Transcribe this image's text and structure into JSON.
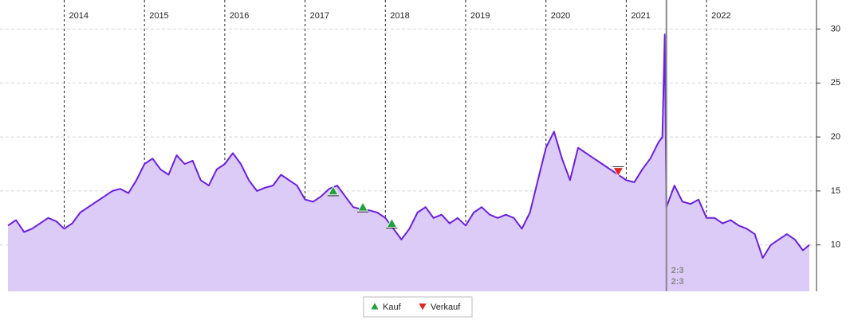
{
  "chart_data": {
    "type": "area",
    "xlim": [
      2013.28,
      2023.28
    ],
    "xticks": [
      2014,
      2015,
      2016,
      2017,
      2018,
      2019,
      2020,
      2021,
      2022
    ],
    "ylim": [
      5.7,
      32.1
    ],
    "yticks": [
      10,
      15,
      20,
      25,
      30
    ],
    "grid": true,
    "price": {
      "color": "#6a1fe0",
      "fill": "#dccbf7",
      "x": [
        2013.3,
        2013.4,
        2013.5,
        2013.6,
        2013.7,
        2013.8,
        2013.9,
        2014.0,
        2014.1,
        2014.2,
        2014.3,
        2014.4,
        2014.5,
        2014.6,
        2014.7,
        2014.8,
        2014.9,
        2015.0,
        2015.1,
        2015.2,
        2015.3,
        2015.4,
        2015.5,
        2015.6,
        2015.7,
        2015.8,
        2015.9,
        2016.0,
        2016.1,
        2016.2,
        2016.3,
        2016.4,
        2016.5,
        2016.6,
        2016.7,
        2016.8,
        2016.9,
        2017.0,
        2017.1,
        2017.2,
        2017.3,
        2017.4,
        2017.5,
        2017.6,
        2017.7,
        2017.8,
        2017.9,
        2018.0,
        2018.1,
        2018.2,
        2018.3,
        2018.4,
        2018.5,
        2018.6,
        2018.7,
        2018.8,
        2018.9,
        2019.0,
        2019.1,
        2019.2,
        2019.3,
        2019.4,
        2019.5,
        2019.6,
        2019.7,
        2019.8,
        2019.9,
        2020.0,
        2020.1,
        2020.2,
        2020.3,
        2020.4,
        2020.5,
        2020.6,
        2020.7,
        2020.8,
        2020.9,
        2021.0,
        2021.1,
        2021.2,
        2021.3,
        2021.4,
        2021.45,
        2021.48,
        2021.5,
        2021.6,
        2021.7,
        2021.8,
        2021.9,
        2022.0,
        2022.1,
        2022.2,
        2022.3,
        2022.4,
        2022.5,
        2022.6,
        2022.7,
        2022.8,
        2022.9,
        2023.0,
        2023.1,
        2023.2,
        2023.28
      ],
      "values": [
        11.8,
        12.3,
        11.2,
        11.5,
        12.0,
        12.5,
        12.2,
        11.5,
        12.0,
        13.0,
        13.5,
        14.0,
        14.5,
        15.0,
        15.2,
        14.8,
        16.0,
        17.5,
        18.0,
        17.0,
        16.5,
        18.3,
        17.5,
        17.8,
        16.0,
        15.5,
        17.0,
        17.5,
        18.5,
        17.5,
        16.0,
        15.0,
        15.3,
        15.5,
        16.5,
        16.0,
        15.5,
        14.2,
        14.0,
        14.5,
        15.2,
        15.5,
        14.5,
        13.5,
        13.3,
        13.2,
        13.0,
        12.5,
        11.5,
        10.5,
        11.5,
        13.0,
        13.5,
        12.5,
        12.8,
        12.0,
        12.5,
        11.8,
        13.0,
        13.5,
        12.8,
        12.5,
        12.8,
        12.5,
        11.5,
        13.0,
        16.0,
        19.0,
        20.5,
        18.0,
        16.0,
        19.0,
        18.5,
        18.0,
        17.5,
        17.0,
        16.5,
        16.0,
        15.8,
        17.0,
        18.0,
        19.5,
        20.0,
        29.5,
        13.5,
        15.5,
        14.0,
        13.8,
        14.2,
        12.5,
        12.5,
        12.0,
        12.3,
        11.8,
        11.5,
        11.0,
        8.8,
        10.0,
        10.5,
        11.0,
        10.5,
        9.5,
        10.0
      ]
    },
    "series": [
      {
        "name": "Kauf",
        "color": "#1fa33a",
        "marker": "up",
        "x": [
          2017.35,
          2017.72,
          2018.08
        ],
        "values": [
          15.0,
          13.5,
          12.0
        ]
      },
      {
        "name": "Verkauf",
        "color": "#e3241b",
        "marker": "down",
        "x": [
          2020.9
        ],
        "values": [
          16.8
        ]
      }
    ],
    "split": {
      "x": 2021.5,
      "labels": [
        "2:3",
        "2:3"
      ],
      "color": "#888888"
    }
  }
}
